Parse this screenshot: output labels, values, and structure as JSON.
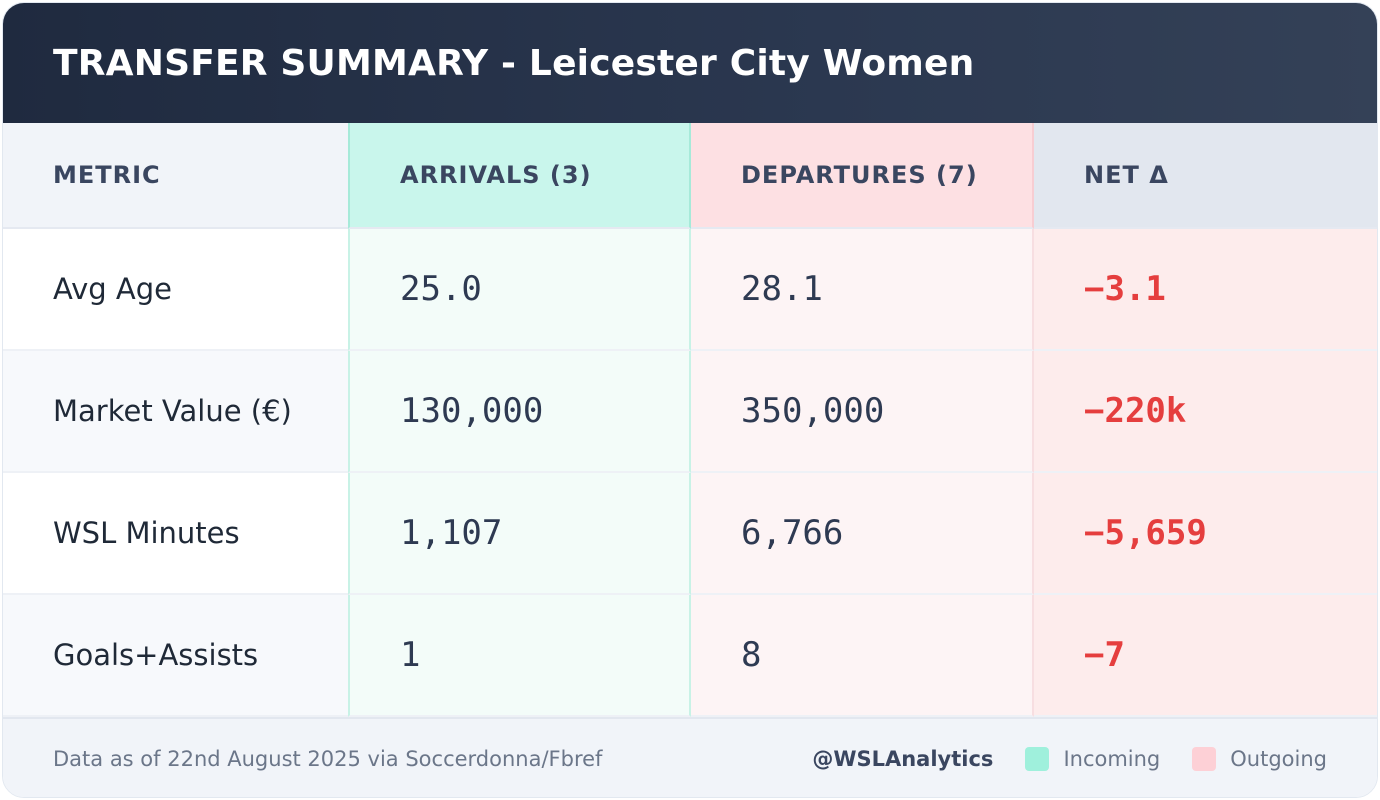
{
  "title": "TRANSFER SUMMARY - Leicester City Women",
  "columns": {
    "metric": "METRIC",
    "arrivals": "ARRIVALS (3)",
    "departures": "DEPARTURES (7)",
    "net": "NET Δ"
  },
  "rows": [
    {
      "metric": "Avg Age",
      "arrivals": "25.0",
      "departures": "28.1",
      "net": "−3.1"
    },
    {
      "metric": "Market Value (€)",
      "arrivals": "130,000",
      "departures": "350,000",
      "net": "−220k"
    },
    {
      "metric": "WSL Minutes",
      "arrivals": "1,107",
      "departures": "6,766",
      "net": "−5,659"
    },
    {
      "metric": "Goals+Assists",
      "arrivals": "1",
      "departures": "8",
      "net": "−7"
    }
  ],
  "footer": {
    "source": "Data as of 22nd August 2025 via Soccerdonna/Fbref",
    "handle": "@WSLAnalytics",
    "legend": [
      {
        "label": "Incoming",
        "color": "#9ff0dc"
      },
      {
        "label": "Outgoing",
        "color": "#fdd0d6"
      }
    ]
  },
  "colors": {
    "negative": "#e53e3e",
    "header_bg": "#1f2a3f"
  }
}
